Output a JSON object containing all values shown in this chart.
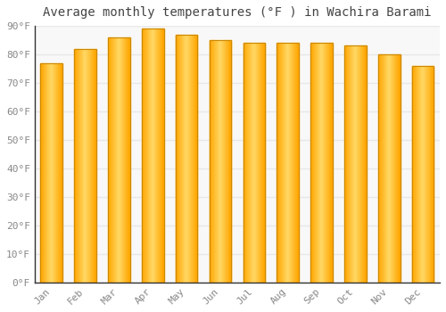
{
  "title": "Average monthly temperatures (°F ) in Wachira Barami",
  "months": [
    "Jan",
    "Feb",
    "Mar",
    "Apr",
    "May",
    "Jun",
    "Jul",
    "Aug",
    "Sep",
    "Oct",
    "Nov",
    "Dec"
  ],
  "values": [
    77,
    82,
    86,
    89,
    87,
    85,
    84,
    84,
    84,
    83,
    80,
    76
  ],
  "bar_color_main": "#FFA500",
  "bar_color_light": "#FFD966",
  "bar_color_edge": "#CC8800",
  "ylim": [
    0,
    90
  ],
  "yticks": [
    0,
    10,
    20,
    30,
    40,
    50,
    60,
    70,
    80,
    90
  ],
  "ytick_labels": [
    "0°F",
    "10°F",
    "20°F",
    "30°F",
    "40°F",
    "50°F",
    "60°F",
    "70°F",
    "80°F",
    "90°F"
  ],
  "background_color": "#ffffff",
  "plot_bg_color": "#f8f8f8",
  "grid_color": "#e8e8e8",
  "title_fontsize": 10,
  "tick_fontsize": 8,
  "tick_color": "#888888",
  "font_family": "monospace",
  "bar_width": 0.65
}
